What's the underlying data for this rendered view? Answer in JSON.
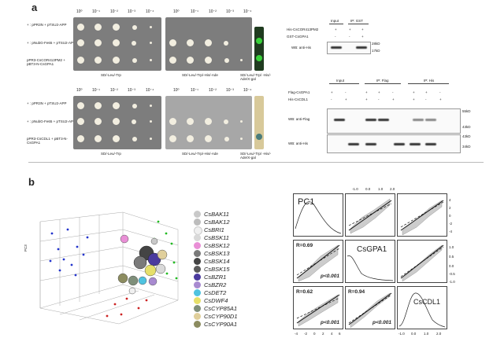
{
  "panel_a": {
    "letter": "a",
    "top_dilutions": [
      "10⁰",
      "10⁻¹",
      "10⁻²",
      "10⁻³",
      "10⁻⁴"
    ],
    "top_rows": [
      "+ : pPR3N + pTSU2-APP",
      "+ : pNubG-Fe65 + pTSU2-APP",
      "pPR3-CsCOR413PM2 + pBT3-N-CsGPA1"
    ],
    "bottom_rows": [
      "+ : pPR3N + pTSU2-APP",
      "+ : pNubG-Fe65 + pTSU2-APP",
      "pPR3-CsCDL1 + pBT3-N-CsGPA1"
    ],
    "plate_labels": [
      "SD/-Leu/-Trp",
      "SD/-Leu/-Trp/-His/-Ade",
      "SD/-Leu/-Trp/ -His/-Ade/X-gal"
    ],
    "pulldown": {
      "col_input": "Input",
      "col_ip": "IP: GST",
      "row1": "His-CsCOR413PM2",
      "row2": "GST-CsGPA1",
      "row1_vals": [
        "+",
        "+",
        "+"
      ],
      "row2_vals": [
        "-",
        "-",
        "+"
      ],
      "wb": "WB: anti-His",
      "mw1": "28kD",
      "mw2": "17kD"
    },
    "coip": {
      "col_input": "Input",
      "col_ip_flag": "IP: Flag",
      "col_ip_his": "IP: His",
      "row1": "Flag-CsGPA1",
      "row2": "His-CsCDL1",
      "row1_vals": [
        "+",
        "-",
        "+",
        "+",
        "-",
        "+",
        "+",
        "-"
      ],
      "row2_vals": [
        "-",
        "+",
        "+",
        "-",
        "+",
        "+",
        "-",
        "+"
      ],
      "wb1": "WB: anti-Flag",
      "wb2": "WB: anti-His",
      "mw_flag": [
        "55kD",
        "43kD"
      ],
      "mw_his": [
        "43kD",
        "34kD"
      ]
    }
  },
  "panel_b": {
    "letter": "b",
    "axis_z": "PC3",
    "legend": [
      {
        "name": "CsBAK11",
        "color": "#c9c9c9"
      },
      {
        "name": "CsBAK12",
        "color": "#bdbdbd"
      },
      {
        "name": "CsBRI1",
        "color": "#f0f0f0"
      },
      {
        "name": "CsBSK11",
        "color": "#d9d9d9"
      },
      {
        "name": "CsBSK12",
        "color": "#e98fd6"
      },
      {
        "name": "CsBSK13",
        "color": "#7a7a7a"
      },
      {
        "name": "CsBSK14",
        "color": "#444444"
      },
      {
        "name": "CsBSK15",
        "color": "#5a5a5a"
      },
      {
        "name": "CsBZR1",
        "color": "#4b3b9e"
      },
      {
        "name": "CsBZR2",
        "color": "#a88ad0"
      },
      {
        "name": "CsDET2",
        "color": "#4fc3e0"
      },
      {
        "name": "CsDWF4",
        "color": "#e6e06a"
      },
      {
        "name": "CsCYP85A1",
        "color": "#7f8f7a"
      },
      {
        "name": "CsCYP90D1",
        "color": "#e0cf9b"
      },
      {
        "name": "CsCYP90A1",
        "color": "#8c8c60"
      }
    ],
    "pairs": {
      "diag": [
        "PC1",
        "CsGPA1",
        "CsCDL1"
      ],
      "r1": "R=0.69",
      "r2": "R=0.62",
      "r3": "R=0.94",
      "p1": "p<0.001",
      "p2": "p<0.001",
      "p3": "p<0.001",
      "top_ticks": [
        "-1.0",
        "0.0",
        "1.0",
        "2.0"
      ],
      "bottom_ticks": [
        "-4",
        "-2",
        "0",
        "2",
        "4",
        "6"
      ],
      "bottom_ticks2": [
        "-1.0",
        "0.0",
        "1.0",
        "2.0"
      ],
      "right_ticks": [
        "4",
        "2",
        "0",
        "-2",
        "-4"
      ],
      "right_ticks2": [
        "1.0",
        "0.5",
        "0.0",
        "-0.5",
        "-1.0"
      ]
    }
  }
}
